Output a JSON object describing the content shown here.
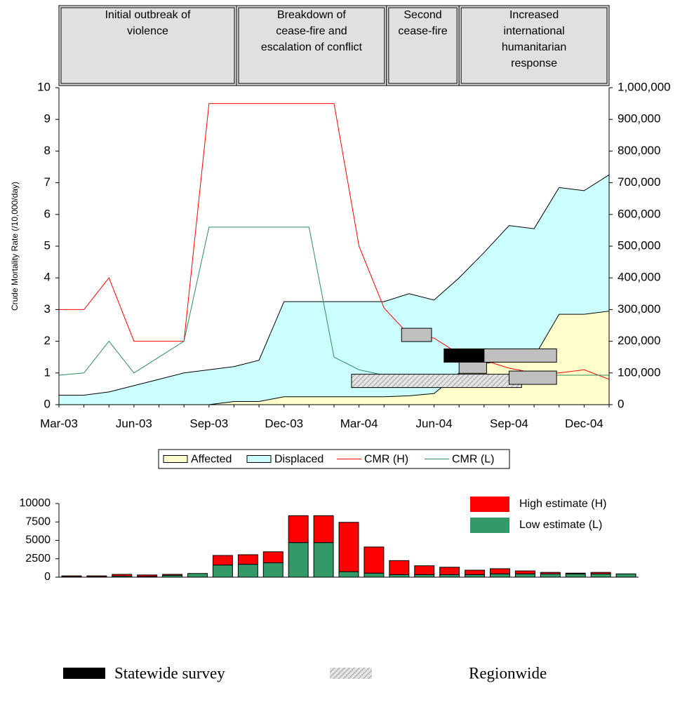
{
  "chart_data": [
    {
      "type": "combo",
      "categories": [
        "Mar-03",
        null,
        null,
        "Jun-03",
        null,
        null,
        "Sep-03",
        null,
        null,
        "Dec-03",
        null,
        null,
        "Mar-04",
        null,
        null,
        "Jun-04",
        null,
        null,
        "Sep-04",
        null,
        null,
        "Dec-04",
        null
      ],
      "y_label": "Crude Mortality Rate (/10,000/day)",
      "ylim": [
        0,
        10
      ],
      "yticks": [
        0,
        1,
        2,
        3,
        4,
        5,
        6,
        7,
        8,
        9,
        10
      ],
      "y2lim": [
        0,
        1000000
      ],
      "y2ticks": [
        0,
        {
          "value": 100000,
          "label": "100,000"
        },
        {
          "value": 200000,
          "label": "200,000"
        },
        {
          "value": 300000,
          "label": "300,000"
        },
        {
          "value": 400000,
          "label": "400,000"
        },
        {
          "value": 500000,
          "label": "500,000"
        },
        {
          "value": 600000,
          "label": "600,000"
        },
        {
          "value": 700000,
          "label": "700,000"
        },
        {
          "value": 800000,
          "label": "800,000"
        },
        {
          "value": 900000,
          "label": "900,000"
        },
        {
          "value": 1000000,
          "label": "1,000,000"
        }
      ],
      "series": [
        {
          "name": "Affected",
          "kind": "area",
          "axis": "y2",
          "color": "#ffffcc",
          "values": [
            0,
            0,
            0,
            0,
            0,
            0,
            0,
            10000,
            10000,
            25000,
            25000,
            25000,
            25000,
            25000,
            28000,
            35000,
            100000,
            130000,
            140000,
            150000,
            285000,
            285000,
            295000
          ]
        },
        {
          "name": "Displaced",
          "kind": "area",
          "axis": "y2",
          "color": "#ccffff",
          "values": [
            30000,
            30000,
            40000,
            60000,
            80000,
            100000,
            110000,
            120000,
            140000,
            325000,
            325000,
            325000,
            325000,
            325000,
            350000,
            330000,
            400000,
            480000,
            565000,
            555000,
            685000,
            675000,
            725000
          ]
        },
        {
          "name": "CMR (H)",
          "kind": "line",
          "color": "#ff0000",
          "values": [
            3,
            3,
            4,
            2,
            2,
            2,
            9.5,
            9.5,
            9.5,
            9.5,
            9.5,
            9.5,
            5,
            3.05,
            2.2,
            2.1,
            1.6,
            1.4,
            1.15,
            1.0,
            1.0,
            1.1,
            0.8
          ]
        },
        {
          "name": "CMR (L)",
          "kind": "line",
          "color": "#2e8b57",
          "values": [
            0.93,
            1.0,
            2.0,
            1.0,
            1.5,
            2.0,
            5.6,
            5.6,
            5.6,
            5.6,
            5.6,
            1.5,
            1.1,
            0.93,
            0.93,
            0.93,
            0.93,
            0.93,
            0.93,
            0.93,
            0.93,
            0.93,
            0.93
          ]
        }
      ],
      "phases": [
        {
          "lines": [
            "Initial outbreak of",
            "violence"
          ],
          "start": 0,
          "end": 7.1
        },
        {
          "lines": [
            "Breakdown of",
            "cease-fire and",
            "escalation of conflict"
          ],
          "start": 7.1,
          "end": 13.1
        },
        {
          "lines": [
            "Second",
            "cease-fire"
          ],
          "start": 13.1,
          "end": 16
        },
        {
          "lines": [
            "Increased",
            "international",
            "humanitarian",
            "response"
          ],
          "start": 16,
          "end": 22
        }
      ],
      "surveys": [
        {
          "start": 11.7,
          "end": 18.5,
          "value": 0.75,
          "color": "#d8d8d8",
          "hatch": true
        },
        {
          "start": 13.7,
          "end": 14.9,
          "value": 2.2,
          "color": "#c0c0c0"
        },
        {
          "start": 16.0,
          "end": 17.1,
          "value": 1.2,
          "color": "#c0c0c0"
        },
        {
          "start": 15.4,
          "end": 17.1,
          "value": 1.55,
          "color": "#000000"
        },
        {
          "start": 17.0,
          "end": 19.9,
          "value": 1.55,
          "color": "#c0c0c0"
        },
        {
          "start": 18.0,
          "end": 19.9,
          "value": 0.85,
          "color": "#c0c0c0"
        }
      ]
    },
    {
      "type": "stacked_bar",
      "ylim": [
        0,
        10000
      ],
      "yticks": [
        0,
        2500,
        5000,
        7500,
        10000
      ],
      "series": [
        {
          "name": "Low estimate (L)",
          "color": "#339966",
          "values": [
            60,
            60,
            150,
            100,
            250,
            500,
            1650,
            1750,
            1950,
            4700,
            4700,
            750,
            550,
            350,
            350,
            350,
            350,
            450,
            450,
            450,
            450,
            450,
            450
          ]
        },
        {
          "name": "High estimate (H)",
          "color": "#ff0000",
          "values": [
            120,
            120,
            230,
            200,
            130,
            0,
            1300,
            1300,
            1500,
            3650,
            3650,
            6700,
            3550,
            1900,
            1200,
            1000,
            600,
            700,
            400,
            200,
            100,
            200,
            0
          ]
        }
      ]
    }
  ],
  "survey_legend": [
    {
      "label": "Statewide survey",
      "color": "#000000"
    },
    {
      "label": "Regionwide",
      "color": "#d8d8d8",
      "hatch": true
    }
  ]
}
